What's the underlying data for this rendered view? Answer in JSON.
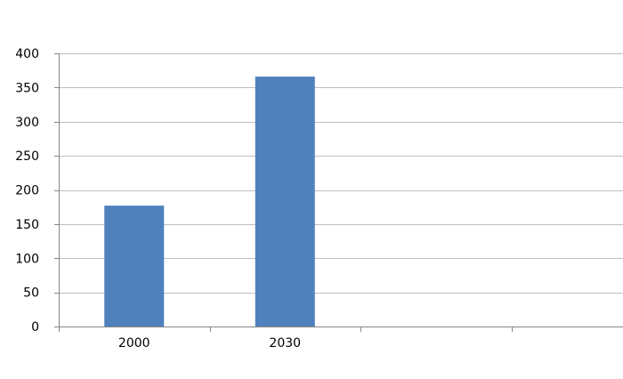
{
  "chart_data": {
    "type": "bar",
    "categories": [
      "2000",
      "2030",
      "",
      ""
    ],
    "values": [
      177,
      366,
      null,
      null
    ],
    "title": "",
    "xlabel": "",
    "ylabel": "",
    "ylim": [
      0,
      400
    ],
    "yticks": [
      0,
      50,
      100,
      150,
      200,
      250,
      300,
      350,
      400
    ],
    "grid": true,
    "legend": "none",
    "colors": {
      "bar": "#4f81bd",
      "grid": "#bfbfbf",
      "axis": "#868686",
      "text": "#000000"
    }
  }
}
